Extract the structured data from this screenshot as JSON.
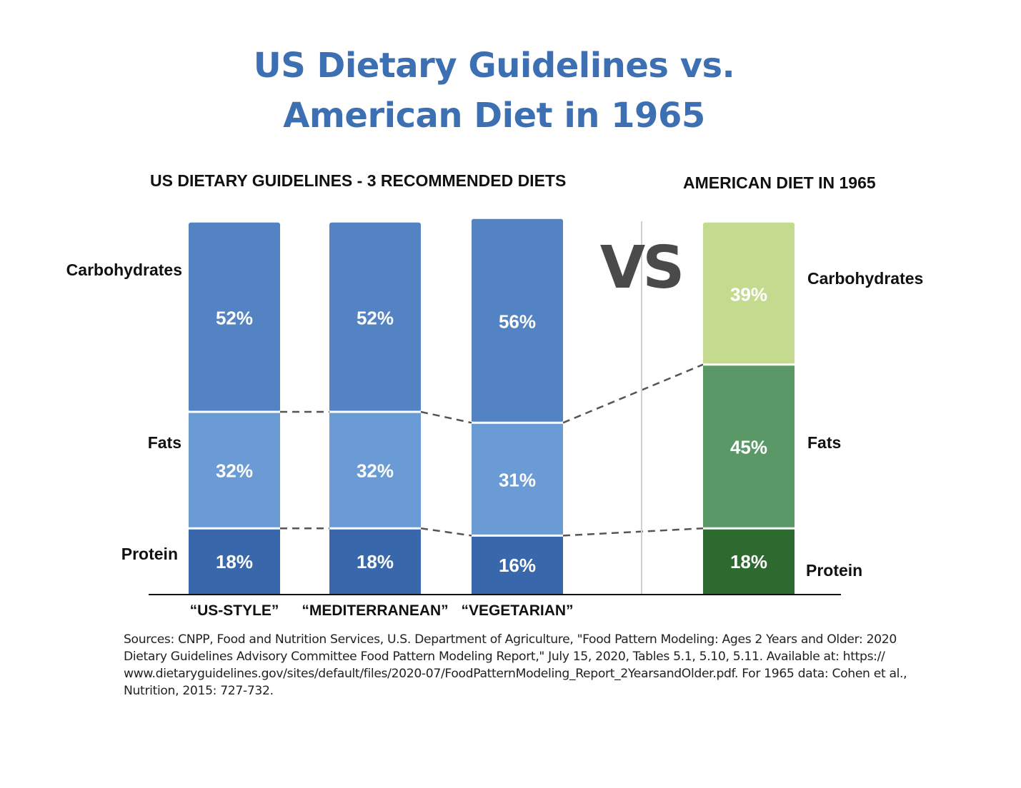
{
  "title": {
    "line1": "US Dietary Guidelines vs.",
    "line2": "American Diet in 1965"
  },
  "headings": {
    "guidelines": "US DIETARY GUIDELINES - 3 RECOMMENDED DIETS",
    "diet_1965": "AMERICAN DIET IN 1965"
  },
  "vs_label": "VS",
  "sources": "Sources: CNPP, Food and Nutrition Services, U.S. Department of Agriculture, \"Food Pattern Modeling: Ages 2 Years and Older: 2020 Dietary Guidelines Advisory Committee Food Pattern Modeling Report,\" July 15, 2020, Tables 5.1, 5.10, 5.11. Available at: https:// www.dietaryguidelines.gov/sites/default/files/2020-07/FoodPatternModeling_Report_2YearsandOlder.pdf. For 1965 data: Cohen et al., Nutrition, 2015: 727-732.",
  "chart_data": {
    "type": "bar",
    "stacked": true,
    "title": "US Dietary Guidelines vs. American Diet in 1965",
    "categories": [
      "“US-STYLE”",
      "“MEDITERRANEAN”",
      "“VEGETARIAN”",
      ""
    ],
    "groups": [
      {
        "name": "US DIETARY GUIDELINES - 3 RECOMMENDED DIETS",
        "categories": [
          0,
          1,
          2
        ]
      },
      {
        "name": "AMERICAN DIET IN 1965",
        "categories": [
          3
        ]
      }
    ],
    "series": [
      {
        "name": "Protein",
        "values": [
          18,
          18,
          16,
          18
        ],
        "labels": [
          "18%",
          "18%",
          "16%",
          "18%"
        ],
        "colors": [
          "#3868ab",
          "#3868ab",
          "#3868ab",
          "#2d6a30"
        ]
      },
      {
        "name": "Fats",
        "values": [
          32,
          32,
          31,
          45
        ],
        "labels": [
          "32%",
          "32%",
          "31%",
          "45%"
        ],
        "colors": [
          "#6b9bd4",
          "#6b9bd4",
          "#6b9bd4",
          "#5a9868"
        ]
      },
      {
        "name": "Carbohydrates",
        "values": [
          52,
          52,
          56,
          39
        ],
        "labels": [
          "52%",
          "52%",
          "56%",
          "39%"
        ],
        "colors": [
          "#5383c2",
          "#5383c2",
          "#5383c2",
          "#c4da8e"
        ]
      }
    ],
    "row_labels_left": [
      "Carbohydrates",
      "Fats",
      "Protein"
    ],
    "row_labels_right": [
      "Carbohydrates",
      "Fats",
      "Protein"
    ],
    "xlabel": "",
    "ylabel": "",
    "grid": false,
    "connector_lines": "dashed",
    "ylim": [
      0,
      104
    ]
  }
}
